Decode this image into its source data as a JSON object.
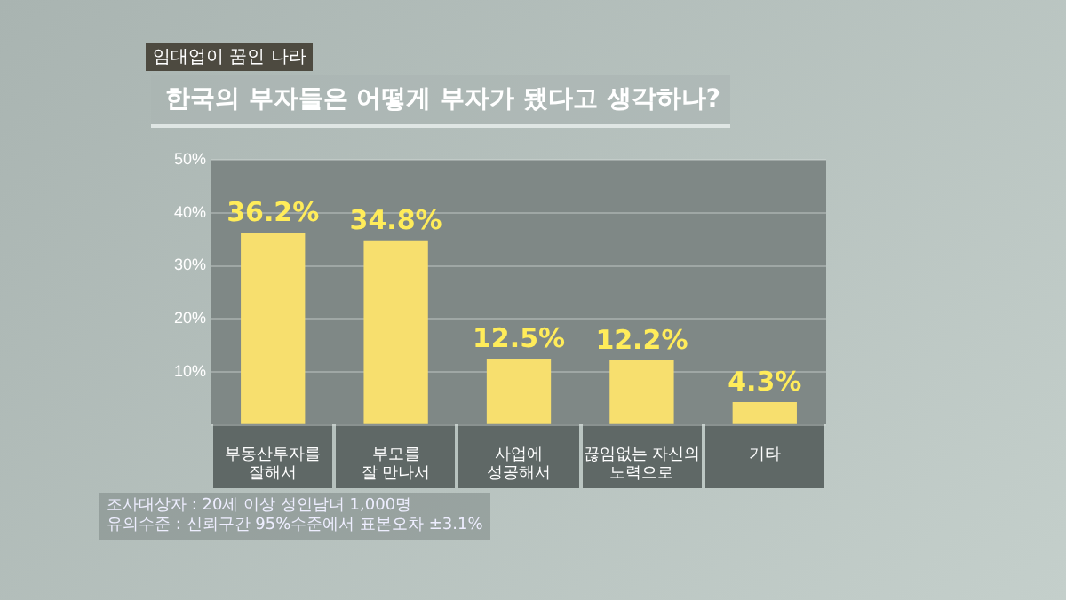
{
  "chart_data": {
    "type": "bar",
    "title": "한국의 부자들은 어떻게 부자가 됐다고 생각하나?",
    "categories": [
      "부동산투자를\n잘해서",
      "부모를\n잘 만나서",
      "사업에\n성공해서",
      "끊임없는 자신의\n노력으로",
      "기타"
    ],
    "values": [
      36.2,
      34.8,
      12.5,
      12.2,
      4.3
    ],
    "value_labels": [
      "36.2%",
      "34.8%",
      "12.5%",
      "12.2%",
      "4.3%"
    ],
    "color": "#f7df6e",
    "ylim": [
      0,
      50
    ],
    "yticks": [
      {
        "value": 0,
        "label": null
      },
      {
        "value": 10,
        "label": "10%"
      },
      {
        "value": 20,
        "label": "20%"
      },
      {
        "value": 30,
        "label": "30%"
      },
      {
        "value": 40,
        "label": "40%"
      },
      {
        "value": 50,
        "label": "50%"
      }
    ],
    "grid": "y",
    "annotations": [
      "임대업이 꿈인 나라",
      "조사대상자 : 20세 이상 성인남녀 1,000명",
      "유의수준 : 신뢰구간 95%수준에서 표본오차 ±3.1%"
    ]
  }
}
